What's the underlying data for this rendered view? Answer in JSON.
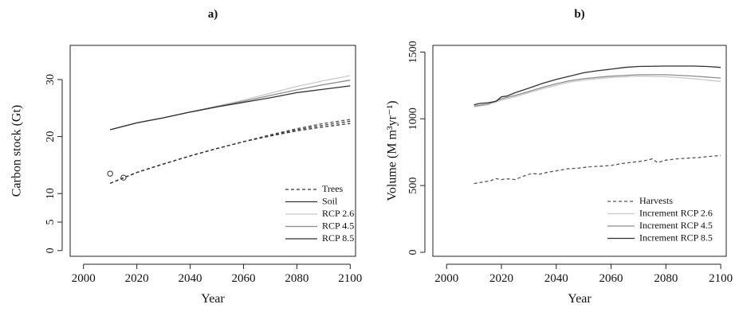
{
  "figure": {
    "panels": [
      {
        "label": "a)",
        "xlabel": "Year",
        "ylabel": "Carbon stock (Gt)"
      },
      {
        "label": "b)",
        "xlabel": "Year",
        "ylabel": "Volume (M m³yr⁻¹)"
      }
    ]
  },
  "chart_data": [
    {
      "type": "line",
      "title": "a)",
      "xlabel": "Year",
      "ylabel": "Carbon stock (Gt)",
      "xlim": [
        1995,
        2102
      ],
      "ylim": [
        -1,
        36
      ],
      "x_ticks": [
        2000,
        2020,
        2040,
        2060,
        2080,
        2100
      ],
      "y_ticks": [
        0,
        5,
        10,
        20,
        30
      ],
      "legend_position": "bottom-right",
      "legend": [
        {
          "label": "Trees",
          "color": "#333333",
          "dash": "4,3"
        },
        {
          "label": "Soil",
          "color": "#333333",
          "dash": ""
        },
        {
          "label": "RCP 2.6",
          "color": "#c8c8c8",
          "dash": ""
        },
        {
          "label": "RCP 4.5",
          "color": "#8c8c8c",
          "dash": ""
        },
        {
          "label": "RCP 8.5",
          "color": "#303030",
          "dash": ""
        }
      ],
      "series": [
        {
          "name": "RCP 2.6",
          "color": "#c8c8c8",
          "dash": "",
          "x": [
            2010,
            2020,
            2030,
            2040,
            2050,
            2060,
            2070,
            2080,
            2090,
            2100
          ],
          "y": [
            21.2,
            22.4,
            23.3,
            24.3,
            25.3,
            26.4,
            27.6,
            28.8,
            29.8,
            30.7
          ]
        },
        {
          "name": "RCP 4.5",
          "color": "#8c8c8c",
          "dash": "",
          "x": [
            2010,
            2020,
            2030,
            2040,
            2050,
            2060,
            2070,
            2080,
            2090,
            2100
          ],
          "y": [
            21.2,
            22.4,
            23.3,
            24.3,
            25.3,
            26.2,
            27.2,
            28.2,
            29.1,
            29.9
          ]
        },
        {
          "name": "RCP 8.5",
          "color": "#303030",
          "dash": "",
          "x": [
            2010,
            2020,
            2030,
            2040,
            2050,
            2060,
            2070,
            2080,
            2090,
            2100
          ],
          "y": [
            21.2,
            22.4,
            23.3,
            24.3,
            25.2,
            26.0,
            26.8,
            27.7,
            28.3,
            28.9
          ]
        },
        {
          "name": "Trees RCP 2.6",
          "color": "#555555",
          "dash": "4,3",
          "x": [
            2010,
            2020,
            2030,
            2040,
            2050,
            2060,
            2070,
            2080,
            2090,
            2100
          ],
          "y": [
            11.8,
            13.7,
            15.2,
            16.6,
            17.9,
            19.1,
            20.3,
            21.4,
            22.3,
            23.0
          ]
        },
        {
          "name": "Trees RCP 4.5",
          "color": "#444444",
          "dash": "4,3",
          "x": [
            2010,
            2020,
            2030,
            2040,
            2050,
            2060,
            2070,
            2080,
            2090,
            2100
          ],
          "y": [
            11.8,
            13.7,
            15.2,
            16.6,
            17.9,
            19.1,
            20.2,
            21.2,
            22.0,
            22.7
          ]
        },
        {
          "name": "Trees RCP 8.5",
          "color": "#333333",
          "dash": "4,3",
          "x": [
            2010,
            2020,
            2030,
            2040,
            2050,
            2060,
            2070,
            2080,
            2090,
            2100
          ],
          "y": [
            11.8,
            13.7,
            15.2,
            16.6,
            17.9,
            19.1,
            20.1,
            21.0,
            21.7,
            22.3
          ]
        }
      ],
      "points": [
        {
          "x": 2010,
          "y": 13.5
        },
        {
          "x": 2015,
          "y": 12.8
        }
      ]
    },
    {
      "type": "line",
      "title": "b)",
      "xlabel": "Year",
      "ylabel": "Volume (M m³yr⁻¹)",
      "xlim": [
        1995,
        2102
      ],
      "ylim": [
        -30,
        1550
      ],
      "x_ticks": [
        2000,
        2020,
        2040,
        2060,
        2080,
        2100
      ],
      "y_ticks": [
        0,
        500,
        1000,
        1500
      ],
      "legend_position": "bottom-right",
      "legend": [
        {
          "label": "Harvests",
          "color": "#555555",
          "dash": "4,3"
        },
        {
          "label": "Increment RCP 2.6",
          "color": "#c8c8c8",
          "dash": ""
        },
        {
          "label": "Increment RCP 4.5",
          "color": "#8c8c8c",
          "dash": ""
        },
        {
          "label": "Increment RCP 8.5",
          "color": "#303030",
          "dash": ""
        }
      ],
      "series": [
        {
          "name": "Harvests",
          "color": "#555555",
          "dash": "4,3",
          "x": [
            2010,
            2013,
            2016,
            2018,
            2020,
            2022,
            2025,
            2028,
            2031,
            2034,
            2037,
            2040,
            2044,
            2048,
            2052,
            2056,
            2060,
            2064,
            2068,
            2072,
            2075,
            2077,
            2080,
            2084,
            2088,
            2092,
            2096,
            2100
          ],
          "y": [
            515,
            525,
            535,
            552,
            545,
            550,
            545,
            570,
            590,
            585,
            600,
            610,
            625,
            630,
            640,
            645,
            650,
            665,
            675,
            685,
            700,
            672,
            690,
            700,
            705,
            710,
            718,
            725
          ]
        },
        {
          "name": "Increment RCP 2.6",
          "color": "#c8c8c8",
          "dash": "",
          "x": [
            2010,
            2015,
            2020,
            2025,
            2030,
            2035,
            2040,
            2045,
            2050,
            2060,
            2070,
            2080,
            2090,
            2100
          ],
          "y": [
            1090,
            1105,
            1140,
            1165,
            1195,
            1225,
            1250,
            1275,
            1290,
            1310,
            1320,
            1315,
            1300,
            1280
          ]
        },
        {
          "name": "Increment RCP 4.5",
          "color": "#8c8c8c",
          "dash": "",
          "x": [
            2010,
            2015,
            2020,
            2025,
            2030,
            2035,
            2040,
            2045,
            2050,
            2060,
            2070,
            2080,
            2090,
            2100
          ],
          "y": [
            1095,
            1110,
            1150,
            1175,
            1205,
            1235,
            1262,
            1285,
            1300,
            1320,
            1330,
            1330,
            1320,
            1305
          ]
        },
        {
          "name": "Increment RCP 8.5",
          "color": "#303030",
          "dash": "",
          "x": [
            2010,
            2012,
            2015,
            2018,
            2020,
            2022,
            2025,
            2030,
            2035,
            2040,
            2045,
            2050,
            2055,
            2060,
            2065,
            2070,
            2080,
            2090,
            2095,
            2100
          ],
          "y": [
            1105,
            1115,
            1120,
            1130,
            1165,
            1170,
            1195,
            1230,
            1265,
            1295,
            1320,
            1345,
            1360,
            1372,
            1385,
            1392,
            1395,
            1395,
            1392,
            1385
          ]
        }
      ],
      "points": []
    }
  ]
}
